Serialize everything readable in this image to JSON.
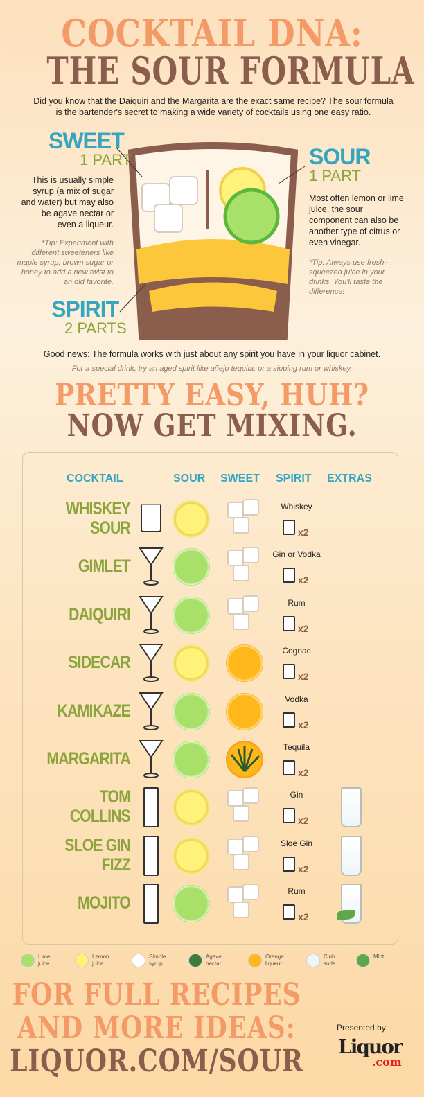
{
  "title": {
    "line1": "COCKTAIL DNA:",
    "line2": "THE SOUR FORMULA"
  },
  "intro": "Did you know that the Daiquiri and the Margarita are the exact same recipe? The sour formula is the bartender's secret to making a wide variety of cocktails using one easy ratio.",
  "sweet": {
    "label": "SWEET",
    "parts": "1 PART",
    "desc": "This is usually simple syrup (a mix of sugar and water) but may also be agave nectar or even a liqueur.",
    "tip": "*Tip: Experiment with different sweeteners like maple syrup, brown sugar or honey to add a new twist to an old favorite."
  },
  "sour": {
    "label": "SOUR",
    "parts": "1 PART",
    "desc": "Most often lemon or lime juice, the sour component can also be another type of citrus or even vinegar.",
    "tip": "*Tip: Always use fresh-squeezed juice in your drinks. You'll taste the difference!"
  },
  "spirit": {
    "label": "SPIRIT",
    "parts": "2 PARTS"
  },
  "good_news": "Good news: The formula works with just about any spirit you have in your liquor cabinet.",
  "special": "For a special drink, try an aged spirit like añejo tequila, or a sipping rum or whiskey.",
  "mid_title": {
    "line1": "PRETTY EASY, HUH?",
    "line2": "NOW GET MIXING."
  },
  "table": {
    "headers": {
      "cocktail": "COCKTAIL",
      "sour": "SOUR",
      "sweet": "SWEET",
      "spirit": "SPIRIT",
      "extras": "EXTRAS"
    },
    "multiplier": "x2",
    "rows": [
      {
        "name": "WHISKEY SOUR",
        "glass": "rocks",
        "sour": "lemon",
        "sweet": "syrup",
        "spirit": "Whiskey",
        "extras": ""
      },
      {
        "name": "GIMLET",
        "glass": "martini",
        "sour": "lime",
        "sweet": "syrup",
        "spirit": "Gin or Vodka",
        "extras": ""
      },
      {
        "name": "DAIQUIRI",
        "glass": "martini",
        "sour": "lime",
        "sweet": "syrup",
        "spirit": "Rum",
        "extras": ""
      },
      {
        "name": "SIDECAR",
        "glass": "martini",
        "sour": "lemon",
        "sweet": "orange",
        "spirit": "Cognac",
        "extras": ""
      },
      {
        "name": "KAMIKAZE",
        "glass": "martini",
        "sour": "lime",
        "sweet": "orange",
        "spirit": "Vodka",
        "extras": ""
      },
      {
        "name": "MARGARITA",
        "glass": "martini",
        "sour": "lime",
        "sweet": "agave",
        "spirit": "Tequila",
        "extras": ""
      },
      {
        "name": "TOM COLLINS",
        "glass": "highball",
        "sour": "lemon",
        "sweet": "syrup",
        "spirit": "Gin",
        "extras": "soda"
      },
      {
        "name": "SLOE GIN FIZZ",
        "glass": "highball",
        "sour": "lemon",
        "sweet": "syrup",
        "spirit": "Sloe Gin",
        "extras": "soda"
      },
      {
        "name": "MOJITO",
        "glass": "highball",
        "sour": "lime",
        "sweet": "syrup",
        "spirit": "Rum",
        "extras": "soda-mint"
      }
    ]
  },
  "legend": [
    {
      "label": "Lime juice",
      "icon": "lime"
    },
    {
      "label": "Lemon juice",
      "icon": "lemon"
    },
    {
      "label": "Simple syrup",
      "icon": "syrup"
    },
    {
      "label": "Agave nectar",
      "icon": "agave"
    },
    {
      "label": "Orange liqueur",
      "icon": "orange"
    },
    {
      "label": "Club soda",
      "icon": "soda"
    },
    {
      "label": "Mint",
      "icon": "mint"
    }
  ],
  "footer": {
    "line1": "FOR FULL RECIPES",
    "line2": "AND MORE IDEAS:",
    "line3": "LIQUOR.COM/SOUR",
    "presented": "Presented by:",
    "logo": "Liquor.com"
  },
  "colors": {
    "orange": "#f49a66",
    "brown": "#8a5d4c",
    "teal": "#36a5bf",
    "olive": "#8ca43c"
  }
}
